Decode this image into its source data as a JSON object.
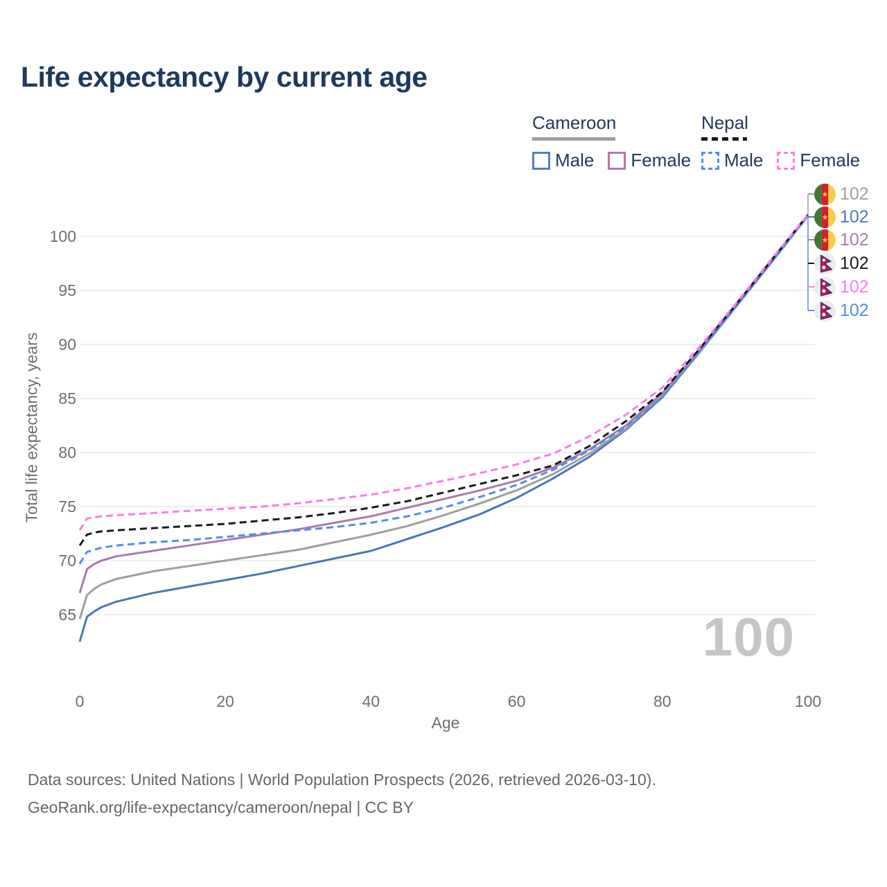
{
  "chart_data": {
    "type": "line",
    "title": "Life expectancy by current age",
    "xlabel": "Age",
    "ylabel": "Total life expectancy, years",
    "xlim": [
      0,
      100
    ],
    "ylim": [
      62,
      103
    ],
    "x_ticks": [
      0,
      20,
      40,
      60,
      80,
      100
    ],
    "y_ticks": [
      65,
      70,
      75,
      80,
      85,
      90,
      95,
      100
    ],
    "grid": "horizontal",
    "legend_position": "top-right",
    "age_counter": "100",
    "ages": [
      0,
      1,
      2,
      3,
      5,
      10,
      15,
      20,
      25,
      30,
      35,
      40,
      45,
      50,
      55,
      60,
      65,
      70,
      75,
      80,
      85,
      90,
      95,
      100
    ],
    "series": [
      {
        "name": "Cameroon Male",
        "country": "Cameroon",
        "sex": "male",
        "color": "#4b76b9",
        "dashed": false,
        "end_value": 102,
        "values": [
          62.5,
          64.8,
          65.3,
          65.7,
          66.2,
          67.0,
          67.6,
          68.2,
          68.8,
          69.5,
          70.2,
          70.9,
          72.0,
          73.1,
          74.3,
          75.8,
          77.6,
          79.6,
          82.1,
          85.1,
          89.2,
          93.4,
          97.6,
          101.9
        ]
      },
      {
        "name": "Cameroon All",
        "country": "Cameroon",
        "sex": "all",
        "color": "#9e9e9e",
        "dashed": false,
        "end_value": 102,
        "values": [
          64.6,
          66.8,
          67.4,
          67.8,
          68.3,
          69.0,
          69.5,
          70.0,
          70.5,
          71.0,
          71.7,
          72.4,
          73.2,
          74.2,
          75.3,
          76.5,
          78.0,
          79.9,
          82.2,
          85.3,
          89.3,
          93.5,
          97.7,
          101.9
        ]
      },
      {
        "name": "Cameroon Female",
        "country": "Cameroon",
        "sex": "female",
        "color": "#a97bad",
        "dashed": false,
        "end_value": 102,
        "values": [
          67.0,
          69.2,
          69.7,
          70.0,
          70.4,
          70.9,
          71.4,
          71.9,
          72.4,
          72.9,
          73.5,
          74.1,
          74.9,
          75.7,
          76.5,
          77.4,
          78.6,
          80.3,
          82.5,
          85.5,
          89.4,
          93.5,
          97.7,
          102.0
        ]
      },
      {
        "name": "Nepal Male",
        "country": "Nepal",
        "sex": "male",
        "color": "#4f8df0",
        "dashed": true,
        "end_value": 102,
        "values": [
          69.7,
          70.8,
          71.0,
          71.2,
          71.4,
          71.7,
          71.9,
          72.2,
          72.5,
          72.8,
          73.1,
          73.5,
          74.1,
          74.9,
          75.9,
          77.0,
          78.4,
          80.2,
          82.4,
          85.1,
          89.2,
          93.4,
          97.6,
          101.9
        ]
      },
      {
        "name": "Nepal All",
        "country": "Nepal",
        "sex": "all",
        "color": "#1a1a1a",
        "dashed": true,
        "end_value": 102,
        "values": [
          71.4,
          72.4,
          72.6,
          72.7,
          72.8,
          73.0,
          73.2,
          73.4,
          73.7,
          74.0,
          74.4,
          74.9,
          75.5,
          76.3,
          77.1,
          77.9,
          78.8,
          80.6,
          82.9,
          85.6,
          89.5,
          93.6,
          97.8,
          102.0
        ]
      },
      {
        "name": "Nepal Female",
        "country": "Nepal",
        "sex": "female",
        "color": "#fb7ce9",
        "dashed": true,
        "end_value": 102,
        "values": [
          72.8,
          73.9,
          74.0,
          74.1,
          74.2,
          74.4,
          74.6,
          74.8,
          75.0,
          75.3,
          75.7,
          76.1,
          76.7,
          77.4,
          78.1,
          78.9,
          79.9,
          81.5,
          83.5,
          86.0,
          89.7,
          93.7,
          97.9,
          102.0
        ]
      }
    ]
  },
  "legend": {
    "groups": [
      {
        "country": "Cameroon",
        "line_style": "solid",
        "underline_color": "#9e9e9e",
        "items": [
          {
            "label": "Male",
            "color": "#5580bb",
            "dashed": false
          },
          {
            "label": "Female",
            "color": "#b377ad",
            "dashed": false
          }
        ]
      },
      {
        "country": "Nepal",
        "line_style": "dashed",
        "underline_color": "#1a1a1a",
        "items": [
          {
            "label": "Male",
            "color": "#4f8df0",
            "dashed": true
          },
          {
            "label": "Female",
            "color": "#fb7ce9",
            "dashed": true
          }
        ]
      }
    ]
  },
  "end_labels": [
    {
      "flag": "cameroon",
      "series": "Cameroon All",
      "value": "102",
      "color": "#9e9e9e"
    },
    {
      "flag": "cameroon",
      "series": "Cameroon Male",
      "value": "102",
      "color": "#4b76b9"
    },
    {
      "flag": "cameroon",
      "series": "Cameroon Female",
      "value": "102",
      "color": "#a97bad"
    },
    {
      "flag": "nepal",
      "series": "Nepal All",
      "value": "102",
      "color": "#1a1a1a"
    },
    {
      "flag": "nepal",
      "series": "Nepal Female",
      "value": "102",
      "color": "#fb7ce9"
    },
    {
      "flag": "nepal",
      "series": "Nepal Male",
      "value": "102",
      "color": "#4f8df0"
    }
  ],
  "footer": {
    "line1": "Data sources: United Nations | World Population Prospects (2026, retrieved 2026-03-10).",
    "line2": "GeoRank.org/life-expectancy/cameroon/nepal | CC BY"
  }
}
